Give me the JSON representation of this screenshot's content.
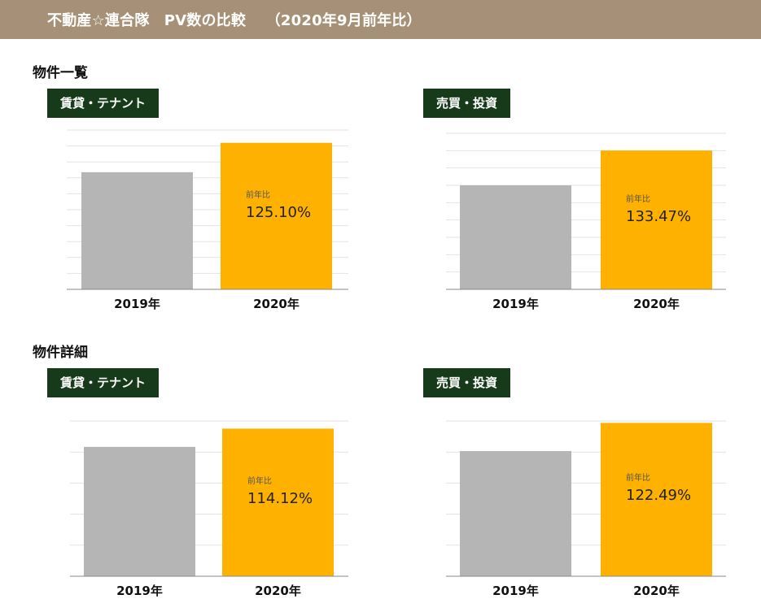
{
  "header": {
    "title": "不動産☆連合隊　PV数の比較　 （2020年9月前年比）"
  },
  "sections": [
    {
      "title": "物件一覧"
    },
    {
      "title": "物件詳細"
    }
  ],
  "colors": {
    "header_bg": "#a69178",
    "badge_bg": "#163a1a",
    "bar_2019": "#b5b5b5",
    "bar_2020": "#ffb100",
    "grid": "#e3e3e3"
  },
  "chart_data": [
    {
      "type": "bar",
      "title": "賃貸・テナント",
      "categories": [
        "2019年",
        "2020年"
      ],
      "values": [
        100,
        125.1
      ],
      "annotation": {
        "label": "前年比",
        "value": "125.10%"
      },
      "ylim": [
        0,
        136
      ],
      "grid": true
    },
    {
      "type": "bar",
      "title": "売買・投資",
      "categories": [
        "2019年",
        "2020年"
      ],
      "values": [
        100,
        133.47
      ],
      "annotation": {
        "label": "前年比",
        "value": "133.47%"
      },
      "ylim": [
        0,
        150
      ],
      "grid": true
    },
    {
      "type": "bar",
      "title": "賃貸・テナント",
      "categories": [
        "2019年",
        "2020年"
      ],
      "values": [
        100,
        114.12
      ],
      "annotation": {
        "label": "前年比",
        "value": "114.12%"
      },
      "ylim": [
        0,
        120
      ],
      "grid": true
    },
    {
      "type": "bar",
      "title": "売買・投資",
      "categories": [
        "2019年",
        "2020年"
      ],
      "values": [
        100,
        122.49
      ],
      "annotation": {
        "label": "前年比",
        "value": "122.49%"
      },
      "ylim": [
        0,
        124
      ],
      "grid": true
    }
  ]
}
